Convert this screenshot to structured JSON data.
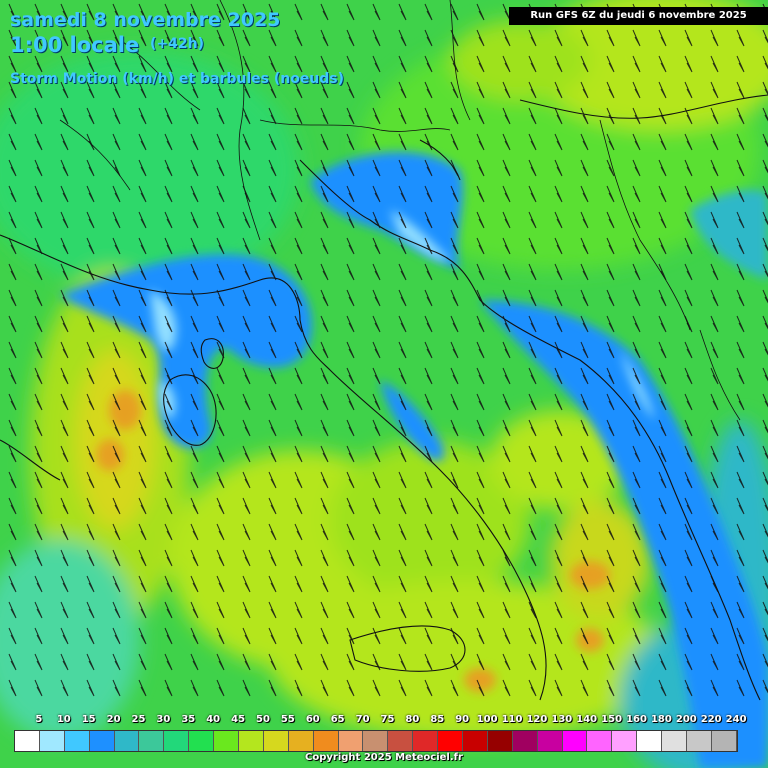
{
  "header": {
    "date": "samedi 8 novembre 2025",
    "time": "1:00 locale",
    "offset": "(+42h)",
    "parameter": "Storm Motion (km/h) et barbules (noeuds)"
  },
  "run_label": "Run GFS 6Z du jeudi 6 novembre 2025",
  "legend": {
    "labels": [
      "5",
      "10",
      "15",
      "20",
      "25",
      "30",
      "35",
      "40",
      "45",
      "50",
      "55",
      "60",
      "65",
      "70",
      "75",
      "80",
      "85",
      "90",
      "100",
      "110",
      "120",
      "130",
      "140",
      "150",
      "160",
      "180",
      "200",
      "220",
      "240"
    ],
    "colors": [
      "#ffffff",
      "#a0e8ff",
      "#40c8ff",
      "#1e90ff",
      "#2fb8c8",
      "#3cc89a",
      "#22d87a",
      "#22e050",
      "#6ae81e",
      "#b4e61e",
      "#d6d81e",
      "#e6b020",
      "#f08c1e",
      "#f0a070",
      "#c89070",
      "#c85040",
      "#e02828",
      "#ff0000",
      "#c80000",
      "#960000",
      "#a00060",
      "#c800a0",
      "#ff00ff",
      "#ff64ff",
      "#ffa0ff",
      "#ffffff",
      "#e0e0e0",
      "#c8c8c8",
      "#b4b4b4"
    ]
  },
  "copyright": "Copyright 2025 Meteociel.fr"
}
